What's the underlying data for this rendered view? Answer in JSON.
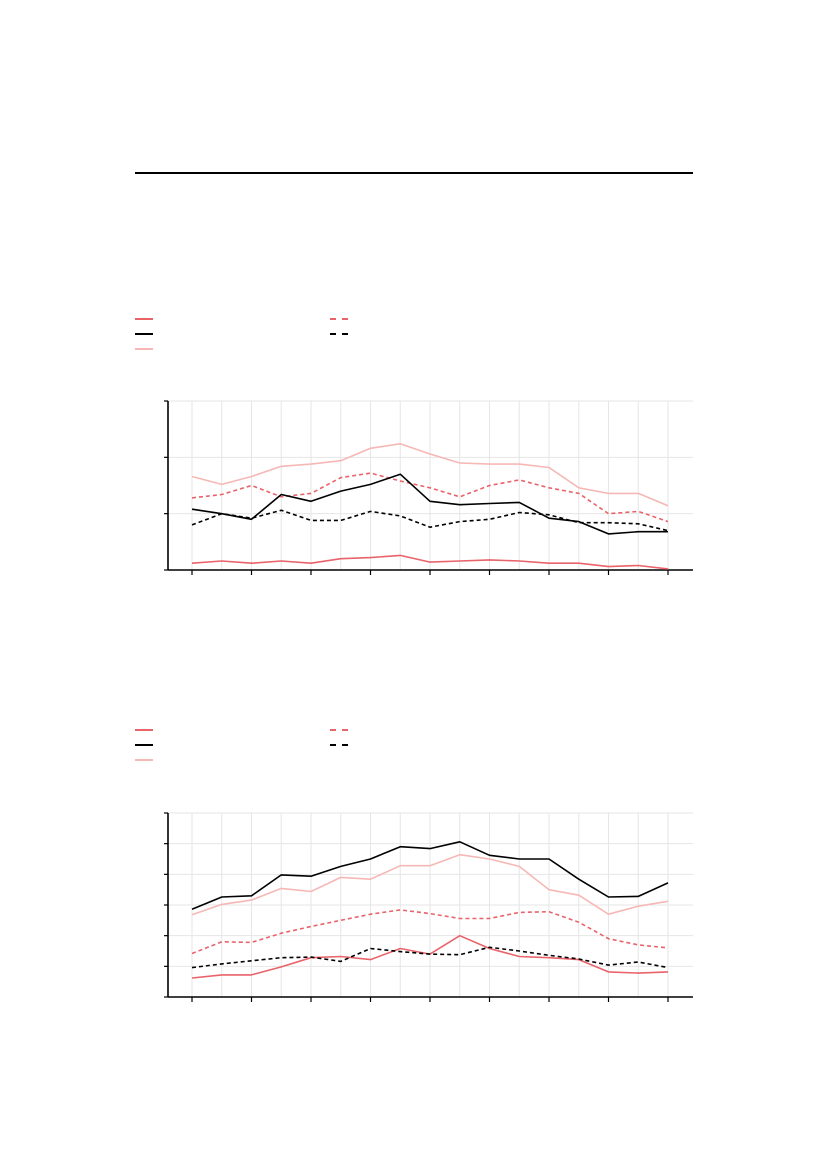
{
  "colors": {
    "red": "#e8636a",
    "black": "#000000",
    "pink": "#f5b8b5",
    "grid": "#e6e6e6"
  },
  "chart_data": [
    {
      "type": "line",
      "title": "",
      "xlabel": "",
      "ylabel": "",
      "legend_position": "top-left",
      "grid": true,
      "x": [
        1,
        2,
        3,
        4,
        5,
        6,
        7,
        8,
        9,
        10,
        11,
        12,
        13,
        14,
        15,
        16,
        17
      ],
      "ylim": [
        0,
        150
      ],
      "series": [
        {
          "name": "",
          "color": "red",
          "dash": "solid",
          "values": [
            6,
            8,
            6,
            8,
            6,
            10,
            11,
            13,
            7,
            8,
            9,
            8,
            6,
            6,
            3,
            4,
            1
          ]
        },
        {
          "name": "",
          "color": "black",
          "dash": "solid",
          "values": [
            54,
            50,
            45,
            67,
            61,
            70,
            76,
            85,
            61,
            58,
            59,
            60,
            46,
            43,
            32,
            34,
            34
          ]
        },
        {
          "name": "",
          "color": "pink",
          "dash": "solid",
          "values": [
            83,
            76,
            83,
            92,
            94,
            97,
            108,
            112,
            103,
            95,
            94,
            94,
            91,
            73,
            68,
            68,
            57
          ]
        },
        {
          "name": "",
          "color": "red",
          "dash": "dashed",
          "values": [
            64,
            67,
            75,
            65,
            68,
            82,
            86,
            79,
            73,
            65,
            75,
            80,
            73,
            68,
            50,
            52,
            43
          ]
        },
        {
          "name": "",
          "color": "black",
          "dash": "dashed",
          "values": [
            40,
            50,
            46,
            53,
            44,
            44,
            52,
            48,
            38,
            43,
            45,
            51,
            49,
            42,
            42,
            41,
            35
          ]
        }
      ]
    },
    {
      "type": "line",
      "title": "",
      "xlabel": "",
      "ylabel": "",
      "legend_position": "top-left",
      "grid": true,
      "x": [
        1,
        2,
        3,
        4,
        5,
        6,
        7,
        8,
        9,
        10,
        11,
        12,
        13,
        14,
        15,
        16,
        17
      ],
      "ylim": [
        0,
        300
      ],
      "series": [
        {
          "name": "",
          "color": "red",
          "dash": "solid",
          "values": [
            31,
            36,
            36,
            49,
            64,
            66,
            61,
            79,
            70,
            100,
            79,
            66,
            64,
            61,
            41,
            39,
            41
          ]
        },
        {
          "name": "",
          "color": "black",
          "dash": "solid",
          "values": [
            143,
            163,
            165,
            199,
            197,
            213,
            225,
            245,
            242,
            253,
            231,
            225,
            225,
            192,
            163,
            164,
            186
          ]
        },
        {
          "name": "",
          "color": "pink",
          "dash": "solid",
          "values": [
            134,
            151,
            158,
            177,
            172,
            195,
            192,
            214,
            214,
            232,
            225,
            213,
            175,
            166,
            135,
            148,
            156
          ]
        },
        {
          "name": "",
          "color": "red",
          "dash": "dashed",
          "values": [
            71,
            90,
            89,
            104,
            115,
            125,
            135,
            142,
            136,
            128,
            128,
            138,
            139,
            122,
            95,
            85,
            80
          ]
        },
        {
          "name": "",
          "color": "black",
          "dash": "dashed",
          "values": [
            48,
            54,
            59,
            64,
            65,
            58,
            79,
            74,
            70,
            69,
            81,
            75,
            68,
            62,
            52,
            57,
            48
          ]
        }
      ]
    }
  ]
}
